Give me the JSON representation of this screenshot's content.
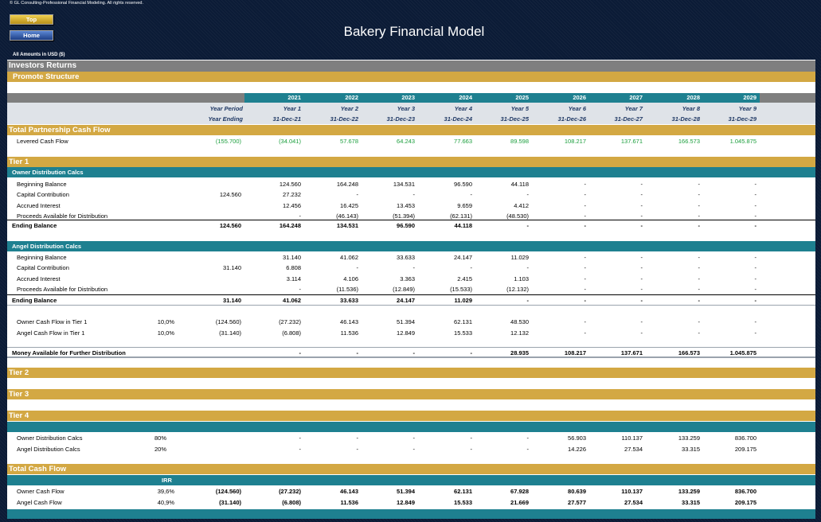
{
  "copyright": "© GL Consulting-Professional Financial Modeling. All rights reserved.",
  "nav": {
    "top": "Top",
    "home": "Home"
  },
  "title": "Bakery Financial Model",
  "units": "All Amounts in  USD ($)",
  "headers": {
    "investors_returns": "Investors Returns",
    "promote_structure": "Promote Structure",
    "year_period": "Year Period",
    "year_ending": "Year Ending"
  },
  "years": [
    "2021",
    "2022",
    "2023",
    "2024",
    "2025",
    "2026",
    "2027",
    "2028",
    "2029"
  ],
  "periods": [
    "Year 1",
    "Year 2",
    "Year 3",
    "Year 4",
    "Year 5",
    "Year 6",
    "Year 7",
    "Year 8",
    "Year 9"
  ],
  "endings": [
    "31-Dec-21",
    "31-Dec-22",
    "31-Dec-23",
    "31-Dec-24",
    "31-Dec-25",
    "31-Dec-26",
    "31-Dec-27",
    "31-Dec-28",
    "31-Dec-29"
  ],
  "sections": {
    "total_partnership": "Total Partnership Cash Flow",
    "tier1": "Tier 1",
    "owner_calcs": "Owner Distribution Calcs",
    "angel_calcs": "Angel Distribution Calcs",
    "tier2": "Tier 2",
    "tier3": "Tier 3",
    "tier4": "Tier 4",
    "total_cash_flow": "Total Cash Flow",
    "irr": "IRR"
  },
  "levered": {
    "label": "Levered Cash Flow",
    "total": "(155.700)",
    "values": [
      "(34.041)",
      "57.678",
      "64.243",
      "77.663",
      "89.598",
      "108.217",
      "137.671",
      "166.573",
      "1.045.875"
    ]
  },
  "owner": [
    {
      "label": "Beginning Balance",
      "total": "",
      "values": [
        "124.560",
        "164.248",
        "134.531",
        "96.590",
        "44.118",
        "-",
        "-",
        "-",
        "-"
      ]
    },
    {
      "label": "Capital Contribution",
      "total": "124.560",
      "values": [
        "27.232",
        "-",
        "-",
        "-",
        "-",
        "-",
        "-",
        "-",
        "-"
      ]
    },
    {
      "label": "Accrued Interest",
      "total": "",
      "values": [
        "12.456",
        "16.425",
        "13.453",
        "9.659",
        "4.412",
        "-",
        "-",
        "-",
        "-"
      ]
    },
    {
      "label": "Proceeds Available for Distribution",
      "total": "",
      "values": [
        "-",
        "(46.143)",
        "(51.394)",
        "(62.131)",
        "(48.530)",
        "-",
        "-",
        "-",
        "-"
      ]
    }
  ],
  "owner_ending": {
    "label": "Ending Balance",
    "total": "124.560",
    "values": [
      "164.248",
      "134.531",
      "96.590",
      "44.118",
      "-",
      "-",
      "-",
      "-",
      "-"
    ]
  },
  "angel": [
    {
      "label": "Beginning Balance",
      "total": "",
      "values": [
        "31.140",
        "41.062",
        "33.633",
        "24.147",
        "11.029",
        "-",
        "-",
        "-",
        "-"
      ]
    },
    {
      "label": "Capital Contribution",
      "total": "31.140",
      "values": [
        "6.808",
        "-",
        "-",
        "-",
        "-",
        "-",
        "-",
        "-",
        "-"
      ]
    },
    {
      "label": "Accrued Interest",
      "total": "",
      "values": [
        "3.114",
        "4.106",
        "3.363",
        "2.415",
        "1.103",
        "-",
        "-",
        "-",
        "-"
      ]
    },
    {
      "label": "Proceeds Available for Distribution",
      "total": "",
      "values": [
        "-",
        "(11.536)",
        "(12.849)",
        "(15.533)",
        "(12.132)",
        "-",
        "-",
        "-",
        "-"
      ]
    }
  ],
  "angel_ending": {
    "label": "Ending Balance",
    "total": "31.140",
    "values": [
      "41.062",
      "33.633",
      "24.147",
      "11.029",
      "-",
      "-",
      "-",
      "-",
      "-"
    ]
  },
  "tier1_flows": [
    {
      "label": "Owner Cash Flow in Tier 1",
      "pct": "10,0%",
      "total": "(124.560)",
      "values": [
        "(27.232)",
        "46.143",
        "51.394",
        "62.131",
        "48.530",
        "-",
        "-",
        "-",
        "-"
      ]
    },
    {
      "label": "Angel Cash Flow in Tier 1",
      "pct": "10,0%",
      "total": "(31.140)",
      "values": [
        "(6.808)",
        "11.536",
        "12.849",
        "15.533",
        "12.132",
        "-",
        "-",
        "-",
        "-"
      ]
    }
  ],
  "money_available": {
    "label": "Money Available for Further Distribution",
    "total": "",
    "values": [
      "-",
      "-",
      "-",
      "-",
      "28.935",
      "108.217",
      "137.671",
      "166.573",
      "1.045.875"
    ]
  },
  "tier4_rows": [
    {
      "label": "Owner Distribution Calcs",
      "pct": "80%",
      "total": "",
      "values": [
        "-",
        "-",
        "-",
        "-",
        "-",
        "56.903",
        "110.137",
        "133.259",
        "836.700"
      ]
    },
    {
      "label": "Angel Distribution Calcs",
      "pct": "20%",
      "total": "",
      "values": [
        "-",
        "-",
        "-",
        "-",
        "-",
        "14.226",
        "27.534",
        "33.315",
        "209.175"
      ]
    }
  ],
  "total_rows": [
    {
      "label": "Owner Cash Flow",
      "pct": "39,6%",
      "total": "(124.560)",
      "values": [
        "(27.232)",
        "46.143",
        "51.394",
        "62.131",
        "67.928",
        "80.639",
        "110.137",
        "133.259",
        "836.700"
      ]
    },
    {
      "label": "Angel Cash Flow",
      "pct": "40,9%",
      "total": "(31.140)",
      "values": [
        "(6.808)",
        "11.536",
        "12.849",
        "15.533",
        "21.669",
        "27.577",
        "27.534",
        "33.315",
        "209.175"
      ]
    }
  ],
  "colors": {
    "background": "#0b1b36",
    "gold": "#d3a843",
    "teal": "#1e8090",
    "grey": "#7f7f7f",
    "green": "#1a9e3c"
  }
}
